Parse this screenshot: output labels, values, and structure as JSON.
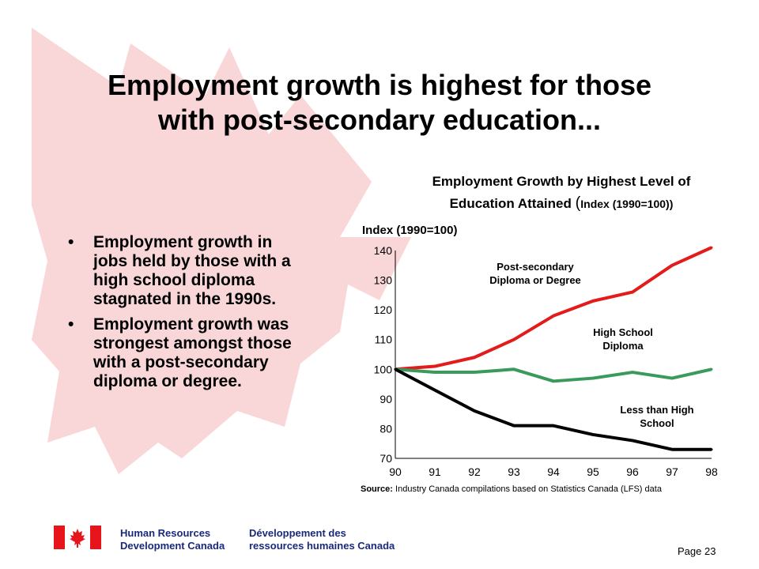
{
  "slide": {
    "title_lines": [
      "Employment growth is highest for those",
      "with post-secondary education..."
    ],
    "bullets": [
      "Employment growth in jobs held by those with a high school diploma stagnated in the 1990s.",
      "Employment growth was strongest amongst those with a post-secondary diploma or degree."
    ],
    "bullet_char": "•",
    "background_color": "#f9d6d8",
    "page_number": "Page 23"
  },
  "footer": {
    "english_name": [
      "Human Resources",
      "Development Canada"
    ],
    "french_name": [
      "Développement des",
      "ressources humaines Canada"
    ],
    "flag_red": "#e8141b",
    "text_color": "#1a2a7a"
  },
  "chart_data": {
    "type": "line",
    "title_main": "Employment Growth by Highest Level of",
    "title_second": "Education Attained",
    "title_paren_open": "(",
    "title_index": "Index (1990=100))",
    "ylabel": "Index (1990=100)",
    "x": [
      "90",
      "91",
      "92",
      "93",
      "94",
      "95",
      "96",
      "97",
      "98"
    ],
    "yticks": [
      70,
      80,
      90,
      100,
      110,
      120,
      130,
      140
    ],
    "ylim": [
      70,
      140
    ],
    "series": [
      {
        "name": "Post-secondary Diploma or Degree",
        "label_lines": [
          "Post-secondary",
          "Diploma or Degree"
        ],
        "color": "#e31b1b",
        "values": [
          100,
          101,
          104,
          110,
          118,
          123,
          126,
          135,
          141
        ]
      },
      {
        "name": "High School Diploma",
        "label_lines": [
          "High School",
          "Diploma"
        ],
        "color": "#3a9a5c",
        "values": [
          100,
          99,
          99,
          100,
          96,
          97,
          99,
          97,
          100
        ]
      },
      {
        "name": "Less than High School",
        "label_lines": [
          "Less than High",
          "School"
        ],
        "color": "#000000",
        "values": [
          100,
          93,
          86,
          81,
          81,
          78,
          76,
          73,
          73
        ]
      }
    ],
    "source_label": "Source:",
    "source_text": "Industry Canada compilations based on Statistics Canada (LFS) data"
  }
}
